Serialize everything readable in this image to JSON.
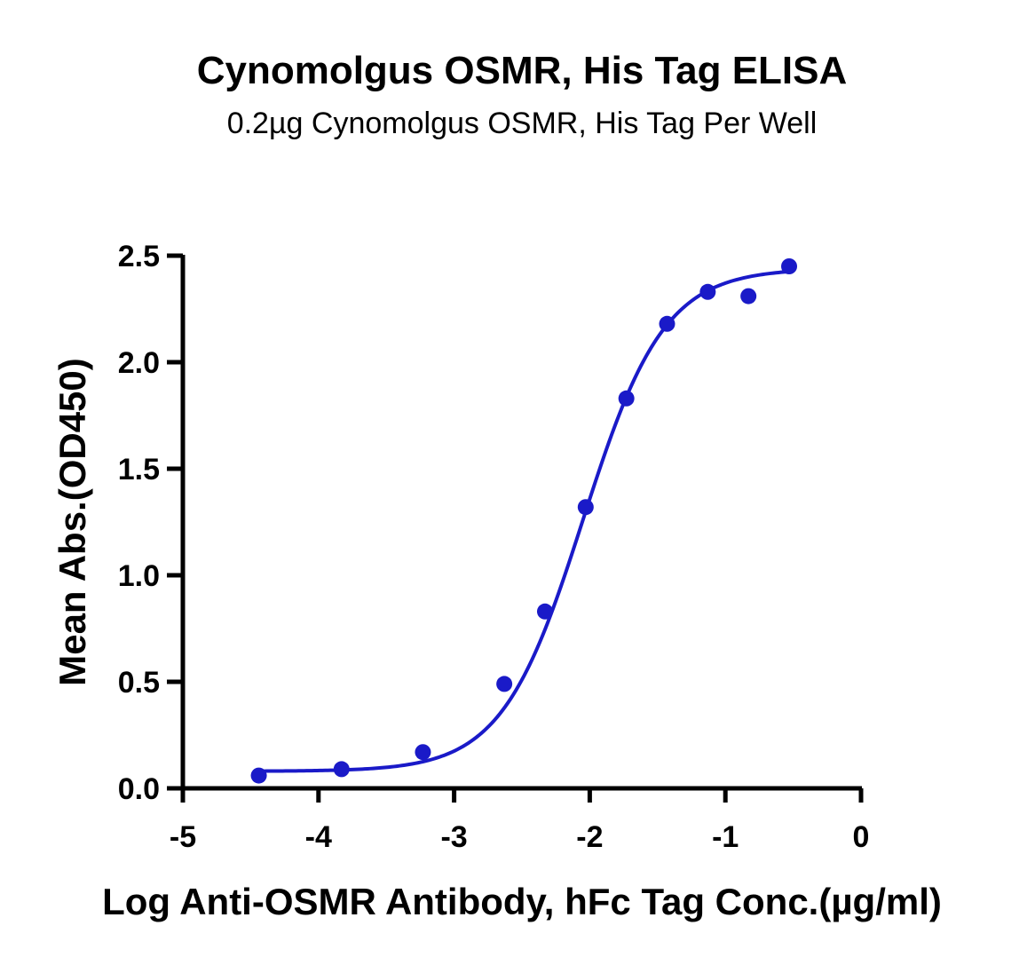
{
  "chart_data": {
    "type": "scatter",
    "title": "Cynomolgus OSMR, His Tag ELISA",
    "subtitle": "0.2µg Cynomolgus OSMR, His Tag Per Well",
    "xlabel": "Log Anti-OSMR Antibody, hFc Tag Conc.(µg/ml)",
    "ylabel": "Mean Abs.(OD450)",
    "xlim": [
      -5,
      0
    ],
    "ylim": [
      0,
      2.5
    ],
    "x_ticks": [
      -5,
      -4,
      -3,
      -2,
      -1,
      0
    ],
    "x_tick_labels": [
      "-5",
      "-4",
      "-3",
      "-2",
      "-1",
      "0"
    ],
    "y_ticks": [
      0,
      0.5,
      1.0,
      1.5,
      2.0,
      2.5
    ],
    "y_tick_labels": [
      "0.0",
      "0.5",
      "1.0",
      "1.5",
      "2.0",
      "2.5"
    ],
    "grid": false,
    "color": "#1a1ac8",
    "points": {
      "x": [
        -4.44,
        -3.83,
        -3.23,
        -2.63,
        -2.33,
        -2.03,
        -1.73,
        -1.43,
        -1.13,
        -0.83,
        -0.53
      ],
      "y": [
        0.06,
        0.09,
        0.17,
        0.49,
        0.83,
        1.32,
        1.83,
        2.18,
        2.33,
        2.31,
        2.45
      ]
    },
    "fit": {
      "model": "4PL",
      "bottom": 0.08,
      "top": 2.44,
      "log_ec50": -2.05,
      "hill_slope": 1.45
    }
  }
}
